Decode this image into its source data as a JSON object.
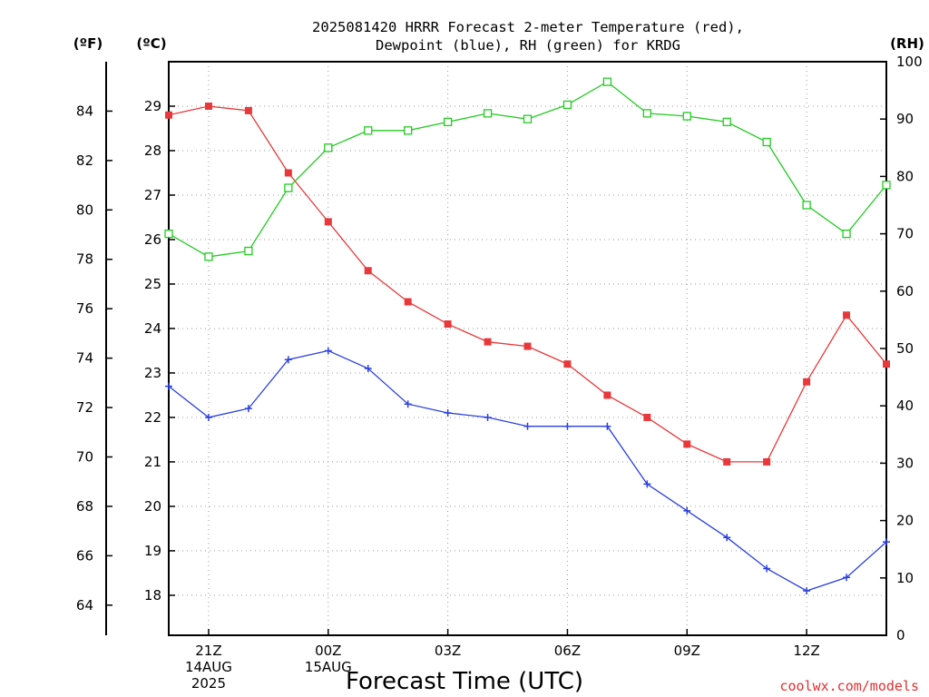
{
  "chart_data": {
    "type": "line",
    "title_line1": "2025081420 HRRR Forecast 2-meter Temperature (red),",
    "title_line2": "Dewpoint (blue), RH (green) for KRDG",
    "unit_f": "(ºF)",
    "unit_c": "(ºC)",
    "unit_rh": "(RH)",
    "xlabel": "Forecast Time (UTC)",
    "credit": "coolwx.com/models",
    "x_hours": [
      20,
      21,
      22,
      23,
      24,
      25,
      26,
      27,
      28,
      29,
      30,
      31,
      32,
      33,
      34,
      35,
      36,
      37,
      38
    ],
    "x_tick_labels": [
      {
        "hour": 21,
        "lines": [
          "21Z",
          "14AUG",
          "2025"
        ]
      },
      {
        "hour": 24,
        "lines": [
          "00Z",
          "15AUG"
        ]
      },
      {
        "hour": 27,
        "lines": [
          "03Z"
        ]
      },
      {
        "hour": 30,
        "lines": [
          "06Z"
        ]
      },
      {
        "hour": 33,
        "lines": [
          "09Z"
        ]
      },
      {
        "hour": 36,
        "lines": [
          "12Z"
        ]
      }
    ],
    "xlim": [
      20,
      38
    ],
    "ylim_c": [
      17.1,
      30.0
    ],
    "ylim_rh": [
      0,
      100
    ],
    "y_ticks_c": [
      18,
      19,
      20,
      21,
      22,
      23,
      24,
      25,
      26,
      27,
      28,
      29
    ],
    "y_ticks_f": [
      64,
      66,
      68,
      70,
      72,
      74,
      76,
      78,
      80,
      82,
      84
    ],
    "y_ticks_rh": [
      0,
      10,
      20,
      30,
      40,
      50,
      60,
      70,
      80,
      90,
      100
    ],
    "series": [
      {
        "axis": "c",
        "color": "#e8383a",
        "marker": "square-filled",
        "values": [
          28.8,
          29.0,
          28.9,
          27.5,
          26.4,
          25.3,
          24.6,
          24.1,
          23.7,
          23.6,
          23.2,
          22.5,
          22.0,
          21.4,
          21.0,
          21.0,
          22.8,
          24.3,
          23.2
        ]
      },
      {
        "axis": "c",
        "color": "#2a3fe0",
        "marker": "plus",
        "values": [
          22.7,
          22.0,
          22.2,
          23.3,
          23.5,
          23.1,
          22.3,
          22.1,
          22.0,
          21.8,
          21.8,
          21.8,
          20.5,
          19.9,
          19.3,
          18.6,
          18.1,
          18.4,
          19.2
        ]
      },
      {
        "axis": "rh",
        "color": "#22cc22",
        "marker": "square-open",
        "values": [
          70,
          66,
          67,
          78,
          85,
          88,
          88,
          89.5,
          91,
          90,
          92.5,
          96.5,
          91,
          90.5,
          89.5,
          86,
          75,
          70,
          78.5
        ]
      }
    ]
  }
}
